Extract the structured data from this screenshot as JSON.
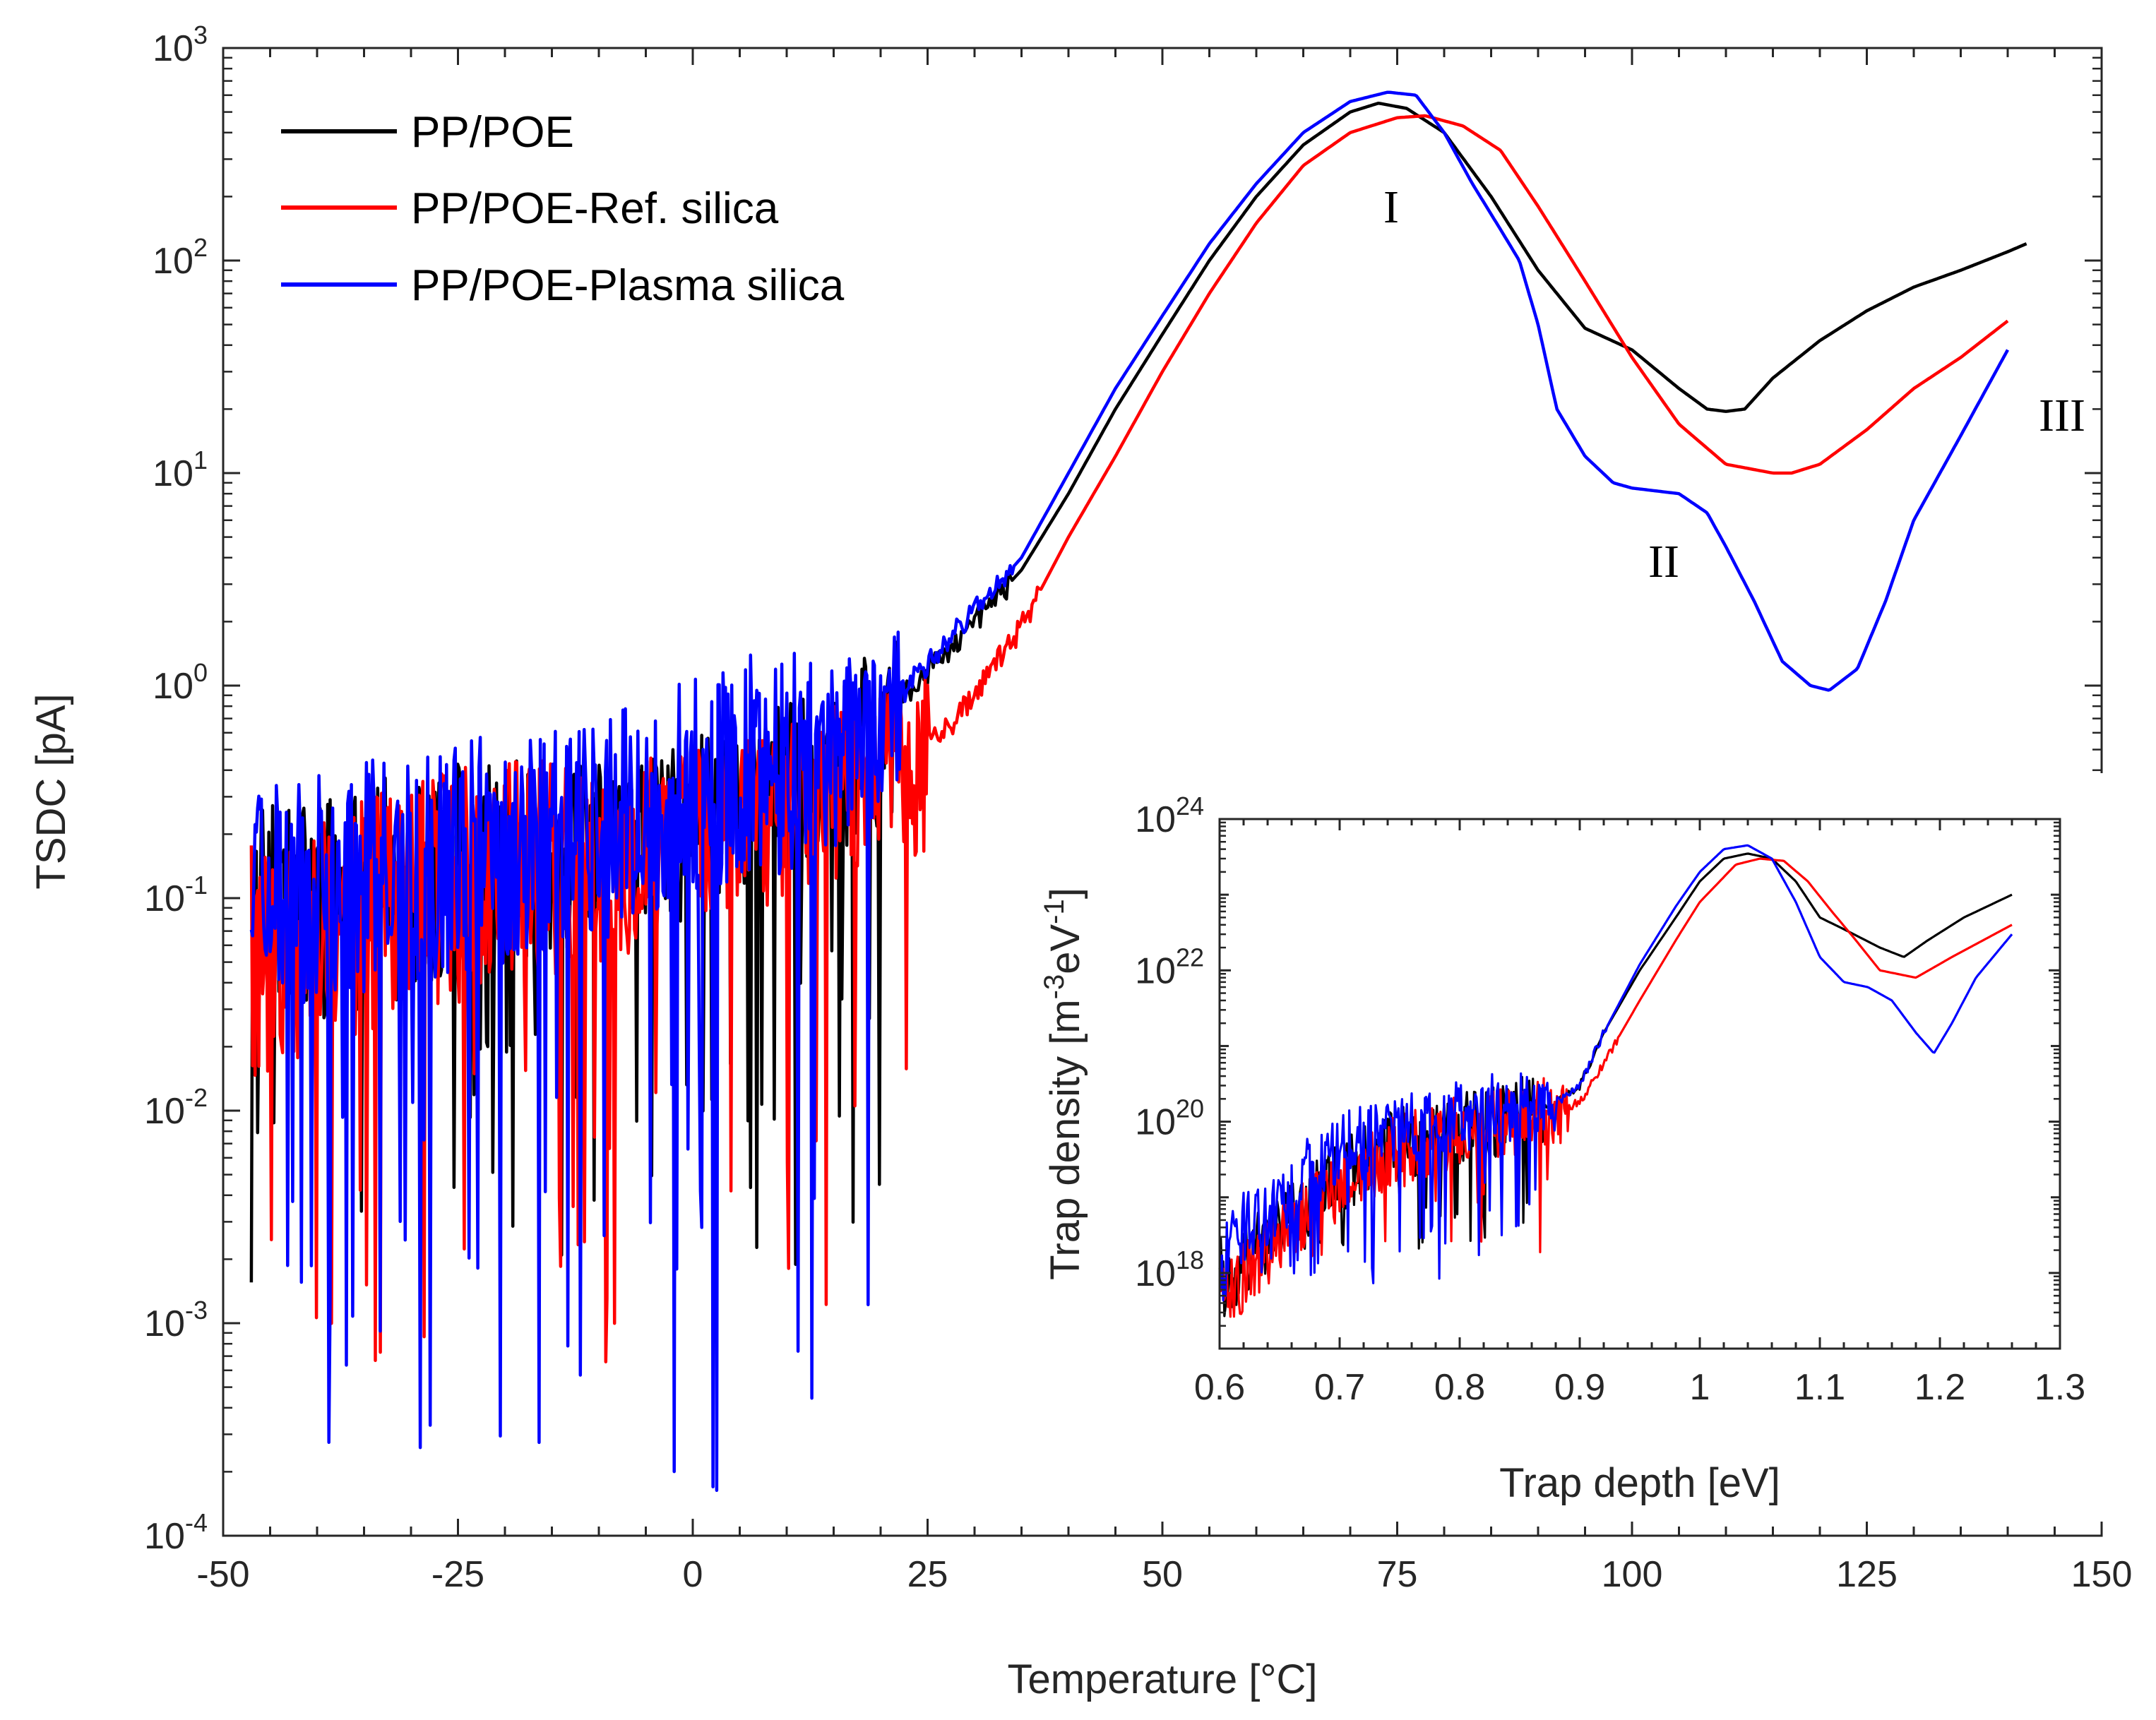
{
  "chart_data": [
    {
      "id": "main",
      "type": "line",
      "xlabel": "Temperature [°C]",
      "ylabel": "TSDC [pA]",
      "yscale": "log",
      "xlim": [
        -50,
        150
      ],
      "ylim_exp": [
        -4,
        3
      ],
      "x_ticks": [
        -50,
        -25,
        0,
        25,
        50,
        75,
        100,
        125,
        150
      ],
      "x_tick_labels": [
        "-50",
        "-25",
        "0",
        "25",
        "50",
        "75",
        "100",
        "125",
        "150"
      ],
      "y_tick_exponents": [
        -4,
        -3,
        -2,
        -1,
        0,
        1,
        2,
        3
      ],
      "y_tick_base": "10",
      "y_tick_exp_labels": [
        "-4",
        "-3",
        "-2",
        "-1",
        "0",
        "1",
        "2",
        "3"
      ],
      "legend": [
        "PP/POE",
        "PP/POE-Ref. silica",
        "PP/POE-Plasma silica"
      ],
      "legend_position": "top-left",
      "annotations": [
        {
          "text": "I",
          "x": 74.5,
          "y": 140
        },
        {
          "text": "II",
          "x": 103,
          "y": 3.5
        },
        {
          "text": "III",
          "x": 146,
          "y": 27
        }
      ],
      "series": [
        {
          "name": "PP/POE",
          "color": "#000000",
          "noise_until": 22,
          "noise_floor": 0.0015,
          "noise_top": 0.5,
          "x": [
            -47,
            -30,
            -10,
            5,
            15,
            22,
            28,
            35,
            40,
            45,
            50,
            55,
            60,
            65,
            70,
            73,
            76,
            80,
            85,
            90,
            95,
            100,
            105,
            108,
            110,
            112,
            115,
            120,
            125,
            130,
            135,
            140,
            142
          ],
          "y": [
            0.08,
            0.12,
            0.2,
            0.35,
            0.55,
            0.85,
            1.6,
            3.5,
            8,
            20,
            45,
            100,
            200,
            350,
            500,
            550,
            520,
            400,
            200,
            90,
            48,
            38,
            25,
            20,
            19.5,
            20,
            28,
            42,
            58,
            75,
            90,
            110,
            120
          ]
        },
        {
          "name": "PP/POE-Ref. silica",
          "color": "#ff0000",
          "noise_until": 25,
          "noise_floor": 0.0005,
          "noise_top": 0.5,
          "x": [
            -47,
            -30,
            -10,
            5,
            15,
            22,
            27,
            30,
            35,
            40,
            45,
            50,
            55,
            60,
            65,
            70,
            75,
            78,
            82,
            86,
            90,
            95,
            100,
            105,
            110,
            115,
            117,
            120,
            125,
            130,
            135,
            140
          ],
          "y": [
            0.05,
            0.1,
            0.17,
            0.28,
            0.4,
            0.5,
            0.62,
            0.9,
            1.9,
            5,
            12,
            30,
            70,
            150,
            280,
            400,
            470,
            480,
            430,
            330,
            180,
            80,
            35,
            17,
            11,
            10,
            10,
            11,
            16,
            25,
            35,
            52
          ]
        },
        {
          "name": "PP/POE-Plasma silica",
          "color": "#0000ff",
          "noise_until": 22,
          "noise_floor": 0.00015,
          "noise_top": 1.4,
          "x": [
            -47,
            -30,
            -10,
            5,
            15,
            22,
            28,
            35,
            40,
            45,
            50,
            55,
            60,
            65,
            70,
            74,
            77,
            80,
            83,
            86,
            88,
            90,
            92,
            95,
            98,
            100,
            105,
            108,
            110,
            113,
            116,
            119,
            121,
            124,
            127,
            130,
            135,
            140
          ],
          "y": [
            0.1,
            0.14,
            0.22,
            0.38,
            0.6,
            0.9,
            1.8,
            4,
            10,
            25,
            55,
            120,
            230,
            400,
            560,
            620,
            600,
            400,
            230,
            140,
            100,
            50,
            20,
            12,
            9,
            8.5,
            8,
            6.5,
            4.5,
            2.5,
            1.3,
            1,
            0.95,
            1.2,
            2.5,
            6,
            15,
            38
          ]
        }
      ]
    },
    {
      "id": "inset",
      "type": "line",
      "xlabel": "Trap depth [eV]",
      "ylabel": "Trap density [m-3eV-1]",
      "ylabel_parts": {
        "main": "Trap density [m",
        "exp1": "-3",
        "mid": "eV",
        "exp2": "-1",
        "end": "]"
      },
      "yscale": "log",
      "xlim": [
        0.6,
        1.3
      ],
      "ylim_exp": [
        17,
        24
      ],
      "x_ticks": [
        0.6,
        0.7,
        0.8,
        0.9,
        1.0,
        1.1,
        1.2,
        1.3
      ],
      "x_tick_labels": [
        "0.6",
        "0.7",
        "0.8",
        "0.9",
        "1",
        "1.1",
        "1.2",
        "1.3"
      ],
      "y_tick_exponents": [
        18,
        20,
        22,
        24
      ],
      "y_tick_base": "10",
      "y_tick_exp_labels": [
        "18",
        "20",
        "22",
        "24"
      ],
      "series": [
        {
          "name": "PP/POE",
          "color": "#000000",
          "noise_until": 0.87,
          "noise_floor": 2e+18,
          "noise_top": 4e+20,
          "x": [
            0.6,
            0.61,
            0.62,
            0.65,
            0.7,
            0.75,
            0.8,
            0.85,
            0.88,
            0.9,
            0.92,
            0.95,
            0.98,
            1.0,
            1.02,
            1.04,
            1.06,
            1.08,
            1.1,
            1.12,
            1.15,
            1.17,
            1.19,
            1.22,
            1.26
          ],
          "y": [
            1e+18,
            5e+17,
            1.5e+18,
            4e+18,
            2e+19,
            5e+19,
            8e+19,
            1.2e+20,
            1.8e+20,
            3e+20,
            1.5e+21,
            1e+22,
            5e+22,
            1.5e+23,
            3e+23,
            3.5e+23,
            3e+23,
            1.5e+23,
            5e+22,
            3.5e+22,
            2e+22,
            1.5e+22,
            2.5e+22,
            5e+22,
            1e+23
          ]
        },
        {
          "name": "PP/POE-Ref. silica",
          "color": "#ff0000",
          "noise_until": 0.89,
          "noise_floor": 1.5e+18,
          "noise_top": 4e+20,
          "x": [
            0.6,
            0.62,
            0.65,
            0.7,
            0.75,
            0.8,
            0.85,
            0.88,
            0.9,
            0.92,
            0.95,
            0.98,
            1.0,
            1.03,
            1.05,
            1.07,
            1.09,
            1.11,
            1.13,
            1.15,
            1.18,
            1.21,
            1.26
          ],
          "y": [
            3e+17,
            1e+18,
            3e+18,
            1.5e+19,
            4e+19,
            7e+19,
            1e+20,
            1.3e+20,
            1.8e+20,
            6e+20,
            4e+21,
            2.5e+22,
            8e+22,
            2.5e+23,
            3e+23,
            2.8e+23,
            1.5e+23,
            6e+22,
            2.5e+22,
            1e+22,
            8e+21,
            1.5e+22,
            4e+22
          ]
        },
        {
          "name": "PP/POE-Plasma silica",
          "color": "#0000ff",
          "noise_until": 0.88,
          "noise_floor": 7e+17,
          "noise_top": 5e+20,
          "x": [
            0.6,
            0.61,
            0.62,
            0.65,
            0.7,
            0.75,
            0.8,
            0.85,
            0.88,
            0.9,
            0.92,
            0.95,
            0.98,
            1.0,
            1.02,
            1.04,
            1.06,
            1.08,
            1.1,
            1.12,
            1.14,
            1.16,
            1.18,
            1.195,
            1.21,
            1.23,
            1.26
          ],
          "y": [
            1e+18,
            2e+18,
            4e+18,
            1e+19,
            4e+19,
            8e+19,
            1.2e+20,
            1.5e+20,
            1.8e+20,
            3e+20,
            1.5e+21,
            1.2e+22,
            7e+22,
            2e+23,
            4e+23,
            4.5e+23,
            3e+23,
            8e+22,
            1.5e+22,
            7e+21,
            6e+21,
            4e+21,
            1.5e+21,
            8e+20,
            2e+21,
            8e+21,
            3e+22
          ]
        }
      ]
    }
  ]
}
